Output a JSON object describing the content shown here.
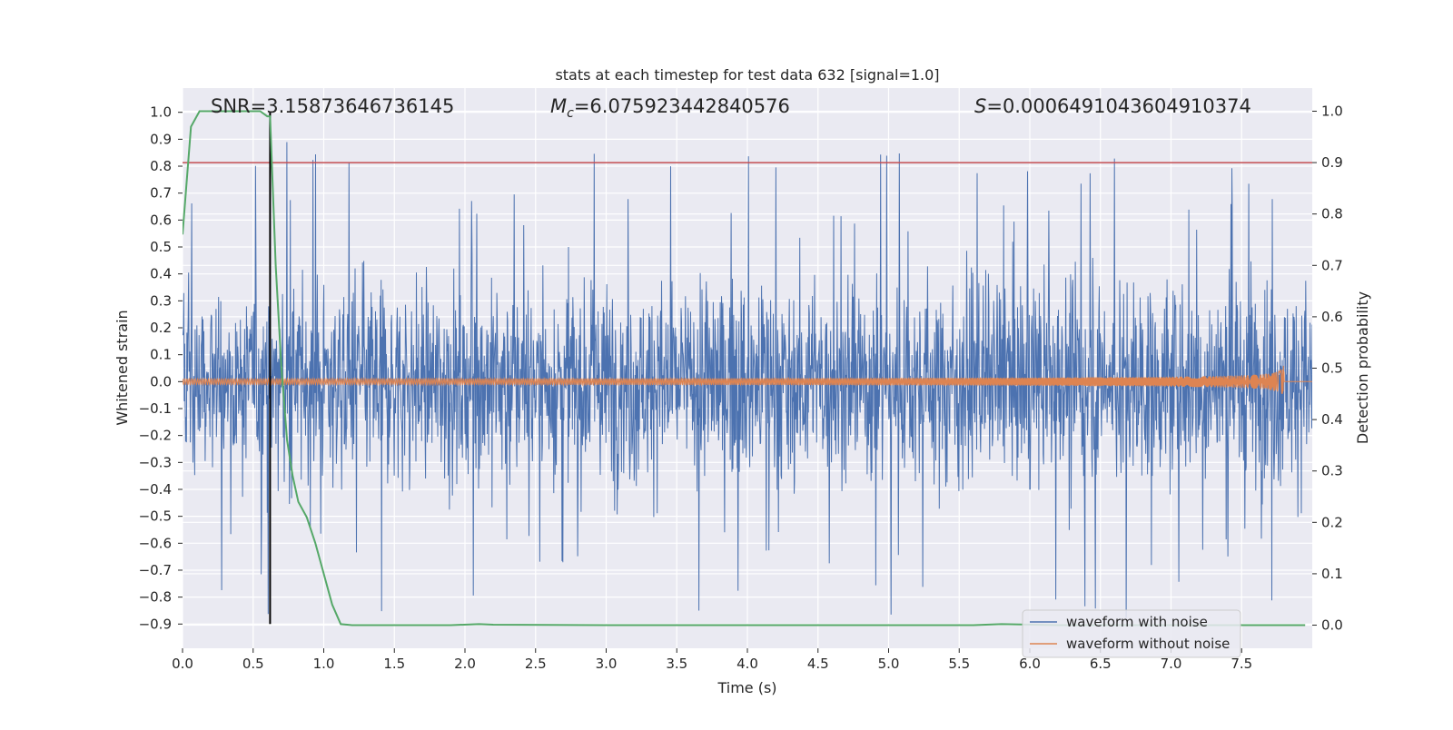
{
  "chart_data": {
    "type": "line",
    "title": "stats at each timestep for test data 632 [signal=1.0]",
    "xlabel": "Time (s)",
    "ylabel_left": "Whitened strain",
    "ylabel_right": "Detection probability",
    "xlim": [
      0.0,
      8.0
    ],
    "ylim_left": [
      -0.99,
      1.09
    ],
    "ylim_right": [
      -0.045,
      1.045
    ],
    "x_ticks": [
      0.0,
      0.5,
      1.0,
      1.5,
      2.0,
      2.5,
      3.0,
      3.5,
      4.0,
      4.5,
      5.0,
      5.5,
      6.0,
      6.5,
      7.0,
      7.5
    ],
    "x_tick_labels": [
      "0.0",
      "0.5",
      "1.0",
      "1.5",
      "2.0",
      "2.5",
      "3.0",
      "3.5",
      "4.0",
      "4.5",
      "5.0",
      "5.5",
      "6.0",
      "6.5",
      "7.0",
      "7.5"
    ],
    "y_left_ticks": [
      -0.9,
      -0.8,
      -0.7,
      -0.6,
      -0.5,
      -0.4,
      -0.3,
      -0.2,
      -0.1,
      0.0,
      0.1,
      0.2,
      0.3,
      0.4,
      0.5,
      0.6,
      0.7,
      0.8,
      0.9,
      1.0
    ],
    "y_left_tick_labels": [
      "−0.9",
      "−0.8",
      "−0.7",
      "−0.6",
      "−0.5",
      "−0.4",
      "−0.3",
      "−0.2",
      "−0.1",
      "0.0",
      "0.1",
      "0.2",
      "0.3",
      "0.4",
      "0.5",
      "0.6",
      "0.7",
      "0.8",
      "0.9",
      "1.0"
    ],
    "y_right_ticks": [
      0.0,
      0.1,
      0.2,
      0.3,
      0.4,
      0.5,
      0.6,
      0.7,
      0.8,
      0.9,
      1.0
    ],
    "y_right_tick_labels": [
      "0.0",
      "0.1",
      "0.2",
      "0.3",
      "0.4",
      "0.5",
      "0.6",
      "0.7",
      "0.8",
      "0.9",
      "1.0"
    ],
    "annotations": {
      "snr": "SNR=3.15873646736145",
      "mc_symbol": "M",
      "mc_sub": "c",
      "mc_value": "=6.075923442840576",
      "s_symbol": "S",
      "s_value": "=0.0006491043604910374"
    },
    "noise_series": {
      "name": "waveform with noise",
      "color": "#4c72b0",
      "core_amplitude": 0.44,
      "max_amplitude": 1.0,
      "seed": 632
    },
    "signal_series": {
      "name": "waveform without noise",
      "color": "#dd8452",
      "merger_time": 7.8,
      "peak_amplitude": 0.07
    },
    "threshold_line": {
      "value": 0.9,
      "axis": "right",
      "color": "#c44e52"
    },
    "marker_line": {
      "x": 0.62,
      "from": -0.9,
      "to": 1.0,
      "color": "#000000"
    },
    "probability_series": {
      "name": "detection probability",
      "color": "#55a868",
      "x": [
        0.0,
        0.06,
        0.12,
        0.2,
        0.3,
        0.4,
        0.5,
        0.55,
        0.6,
        0.62,
        0.66,
        0.7,
        0.74,
        0.78,
        0.82,
        0.88,
        0.94,
        1.0,
        1.06,
        1.12,
        1.2,
        1.5,
        1.9,
        2.1,
        2.2,
        3.0,
        4.0,
        5.0,
        5.6,
        5.8,
        6.2,
        6.6,
        7.0,
        7.5,
        7.95
      ],
      "y": [
        0.76,
        0.97,
        1.0,
        1.0,
        1.0,
        1.0,
        1.0,
        1.0,
        0.99,
        0.99,
        0.7,
        0.5,
        0.36,
        0.29,
        0.24,
        0.21,
        0.16,
        0.1,
        0.04,
        0.002,
        0.0,
        0.0,
        0.0,
        0.002,
        0.001,
        0.0,
        0.0,
        0.0,
        0.0,
        0.002,
        0.0,
        0.0,
        0.0,
        0.0,
        0.0
      ]
    },
    "legend": {
      "location": "lower right",
      "entries": [
        "waveform with noise",
        "waveform without noise"
      ]
    }
  }
}
